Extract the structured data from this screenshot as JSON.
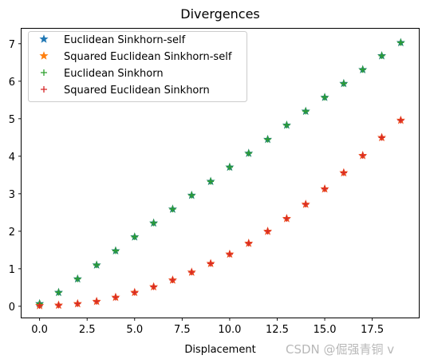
{
  "chart_data": {
    "type": "scatter",
    "title": "Divergences",
    "xlabel": "Displacement",
    "ylabel": "",
    "xlim": [
      -0.95,
      19.95
    ],
    "ylim": [
      -0.3,
      7.4
    ],
    "xticks": [
      0,
      2.5,
      5,
      7.5,
      10,
      12.5,
      15,
      17.5
    ],
    "xtick_labels": [
      "0.0",
      "2.5",
      "5.0",
      "7.5",
      "10.0",
      "12.5",
      "15.0",
      "17.5"
    ],
    "yticks": [
      0,
      1,
      2,
      3,
      4,
      5,
      6,
      7
    ],
    "ytick_labels": [
      "0",
      "1",
      "2",
      "3",
      "4",
      "5",
      "6",
      "7"
    ],
    "grid": false,
    "legend_position": "upper-left",
    "x": [
      0,
      1,
      2,
      3,
      4,
      5,
      6,
      7,
      8,
      9,
      10,
      11,
      12,
      13,
      14,
      15,
      16,
      17,
      18,
      19
    ],
    "series": [
      {
        "name": "Euclidean Sinkhorn-self",
        "marker": "star",
        "color": "#1f77b4",
        "values": [
          0.07,
          0.37,
          0.73,
          1.1,
          1.48,
          1.85,
          2.22,
          2.59,
          2.96,
          3.33,
          3.71,
          4.08,
          4.45,
          4.83,
          5.2,
          5.57,
          5.94,
          6.31,
          6.68,
          7.03
        ]
      },
      {
        "name": "Squared Euclidean Sinkhorn-self",
        "marker": "star",
        "color": "#ff7f0e",
        "values": [
          0.02,
          0.03,
          0.07,
          0.13,
          0.24,
          0.37,
          0.52,
          0.7,
          0.91,
          1.14,
          1.39,
          1.68,
          2.0,
          2.34,
          2.72,
          3.13,
          3.56,
          4.02,
          4.5,
          4.96
        ]
      },
      {
        "name": "Euclidean Sinkhorn",
        "marker": "plus",
        "color": "#2ca02c",
        "values": [
          0.07,
          0.37,
          0.73,
          1.1,
          1.48,
          1.85,
          2.22,
          2.59,
          2.96,
          3.33,
          3.71,
          4.08,
          4.45,
          4.83,
          5.2,
          5.57,
          5.94,
          6.31,
          6.68,
          7.03
        ]
      },
      {
        "name": "Squared Euclidean Sinkhorn",
        "marker": "plus",
        "color": "#d62728",
        "values": [
          0.02,
          0.03,
          0.07,
          0.13,
          0.24,
          0.37,
          0.52,
          0.7,
          0.91,
          1.14,
          1.39,
          1.68,
          2.0,
          2.34,
          2.72,
          3.13,
          3.56,
          4.02,
          4.5,
          4.96
        ]
      }
    ],
    "overlap_colors": [
      "#24866a",
      "#ec4c1b"
    ]
  },
  "watermark": "CSDN @倔强青铜 v"
}
